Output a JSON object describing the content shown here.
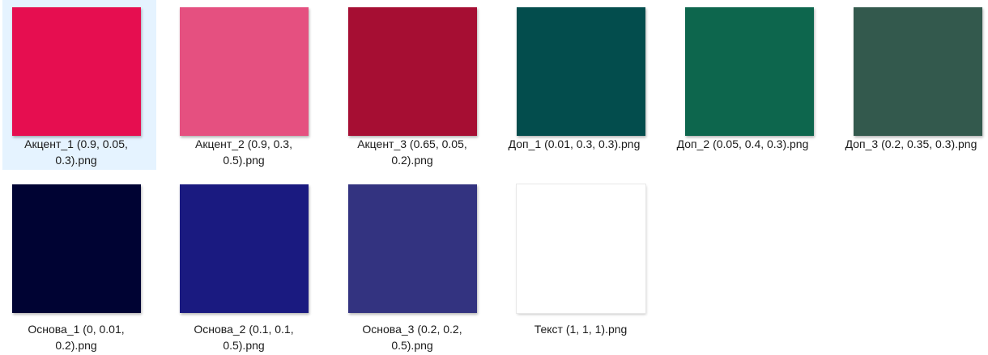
{
  "files": [
    {
      "name": "Акцент_1 (0.9, 0.05, 0.3).png",
      "line1": "Акцент_1 (0.9, 0.05,",
      "line2": "0.3).png",
      "color": "#e60e50",
      "selected": true
    },
    {
      "name": "Акцент_2 (0.9, 0.3, 0.5).png",
      "line1": "Акцент_2 (0.9, 0.3,",
      "line2": "0.5).png",
      "color": "#e55080"
    },
    {
      "name": "Акцент_3 (0.65, 0.05, 0.2).png",
      "line1": "Акцент_3 (0.65, 0.05,",
      "line2": "0.2).png",
      "color": "#a60e33"
    },
    {
      "name": "Доп_1 (0.01, 0.3, 0.3).png",
      "line1": "Доп_1 (0.01, 0.3, 0.3).png",
      "line2": "",
      "color": "#034d4d"
    },
    {
      "name": "Доп_2 (0.05, 0.4, 0.3).png",
      "line1": "Доп_2 (0.05, 0.4, 0.3).png",
      "line2": "",
      "color": "#0d664d"
    },
    {
      "name": "Доп_3 (0.2, 0.35, 0.3).png",
      "line1": "Доп_3 (0.2, 0.35, 0.3).png",
      "line2": "",
      "color": "#33594d"
    },
    {
      "name": "Основа_1 (0, 0.01, 0.2).png",
      "line1": "Основа_1 (0, 0.01,",
      "line2": "0.2).png",
      "color": "#000333"
    },
    {
      "name": "Основа_2 (0.1, 0.1, 0.5).png",
      "line1": "Основа_2 (0.1, 0.1,",
      "line2": "0.5).png",
      "color": "#1a1a80"
    },
    {
      "name": "Основа_3 (0.2, 0.2, 0.5).png",
      "line1": "Основа_3 (0.2, 0.2,",
      "line2": "0.5).png",
      "color": "#333380"
    },
    {
      "name": "Текст (1, 1, 1).png",
      "line1": "Текст (1, 1, 1).png",
      "line2": "",
      "color": "#ffffff"
    }
  ]
}
